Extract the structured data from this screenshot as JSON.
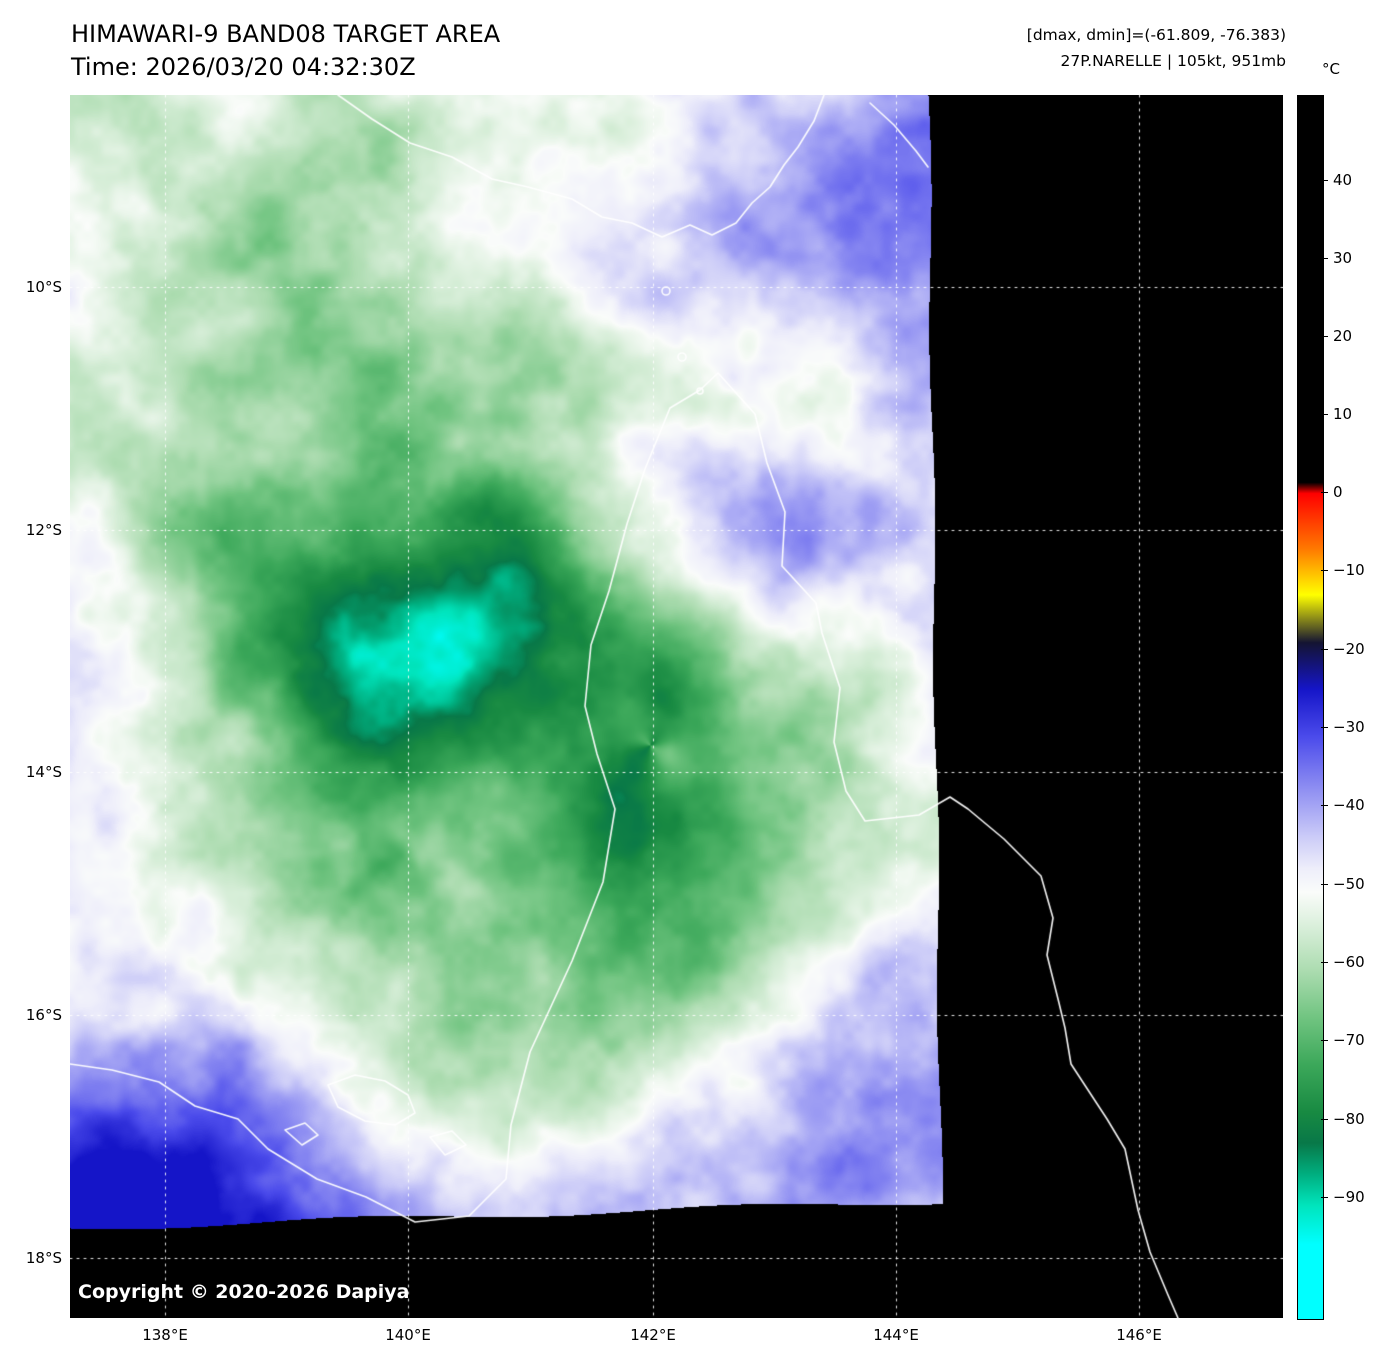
{
  "header": {
    "title": "HIMAWARI-9 BAND08 TARGET AREA",
    "time": "Time: 2026/03/20 04:32:30Z",
    "dmax_dmin": "[dmax, dmin]=(-61.809, -76.383)",
    "storm": "27P.NARELLE | 105kt, 951mb"
  },
  "colorbar": {
    "unit": "°C",
    "ticks": [
      "40",
      "30",
      "20",
      "10",
      "0",
      "−10",
      "−20",
      "−30",
      "−40",
      "−50",
      "−60",
      "−70",
      "−80",
      "−90"
    ]
  },
  "axes": {
    "lat": [
      "10°S",
      "12°S",
      "14°S",
      "16°S",
      "18°S"
    ],
    "lon": [
      "138°E",
      "140°E",
      "142°E",
      "144°E",
      "146°E"
    ]
  },
  "footer": {
    "copyright": "Copyright © 2020-2026 Dapiya"
  },
  "colors": {
    "background": "#ffffff",
    "no_data": "#000000",
    "coastline": "#ffffff",
    "gridline": "#ffffff",
    "text": "#000000"
  }
}
